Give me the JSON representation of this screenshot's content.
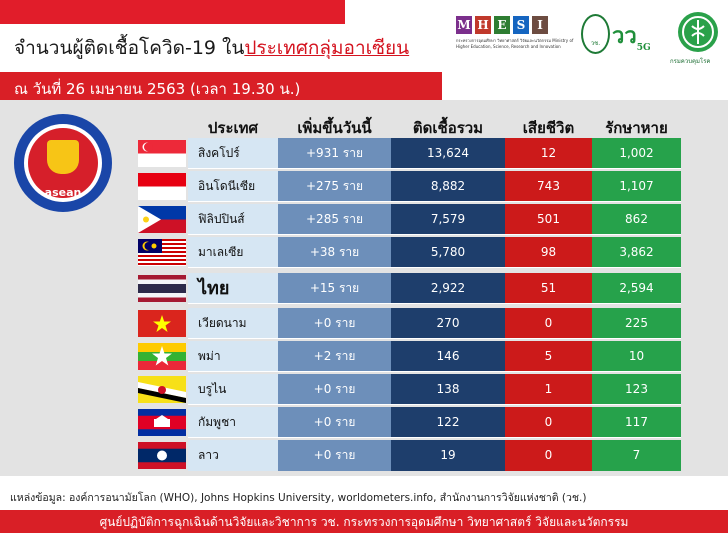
{
  "header": {
    "title_prefix": "จำนวนผู้ติดเชื้อโควิด-19 ใน",
    "title_highlight": "ประเทศกลุ่มอาเซียน",
    "date_line": "ณ วันที่ 26 เมษายน 2563 (เวลา 19.30 น.)"
  },
  "logos": {
    "mhesi_letters": [
      "M",
      "H",
      "E",
      "S",
      "I"
    ],
    "mhesi_colors": [
      "#7b2f8c",
      "#c0392b",
      "#2e7d32",
      "#1565c0",
      "#6d4c41"
    ],
    "mhesi_subtitle": "กระทรวงการอุดมศึกษา วิทยาศาสตร์ วิจัยและนวัตกรรม Ministry of Higher Education, Science, Research and Innovation",
    "nrct_label": "วช.",
    "vc_label": "วว",
    "fiveg_label": "5G",
    "ddc_label": "กรมควบคุมโรค"
  },
  "asean_logo_text": "asean",
  "table": {
    "headers": [
      "ประเทศ",
      "เพิ่มขึ้นวันนี้",
      "ติดเชื้อรวม",
      "เสียชีวิต",
      "รักษาหาย"
    ],
    "rows": [
      {
        "country": "สิงคโปร์",
        "flag": "singapore-flag",
        "new": "+931 ราย",
        "total": "13,624",
        "deaths": "12",
        "recovered": "1,002"
      },
      {
        "country": "อินโดนีเซีย",
        "flag": "indonesia-flag",
        "new": "+275 ราย",
        "total": "8,882",
        "deaths": "743",
        "recovered": "1,107"
      },
      {
        "country": "ฟิลิปปินส์",
        "flag": "philippines-flag",
        "new": "+285 ราย",
        "total": "7,579",
        "deaths": "501",
        "recovered": "862"
      },
      {
        "country": "มาเลเซีย",
        "flag": "malaysia-flag",
        "new": "+38 ราย",
        "total": "5,780",
        "deaths": "98",
        "recovered": "3,862"
      },
      {
        "country": "ไทย",
        "flag": "thailand-flag",
        "new": "+15 ราย",
        "total": "2,922",
        "deaths": "51",
        "recovered": "2,594"
      },
      {
        "country": "เวียดนาม",
        "flag": "vietnam-flag",
        "new": "+0 ราย",
        "total": "270",
        "deaths": "0",
        "recovered": "225"
      },
      {
        "country": "พม่า",
        "flag": "myanmar-flag",
        "new": "+2 ราย",
        "total": "146",
        "deaths": "5",
        "recovered": "10"
      },
      {
        "country": "บรูไน",
        "flag": "brunei-flag",
        "new": "+0 ราย",
        "total": "138",
        "deaths": "1",
        "recovered": "123"
      },
      {
        "country": "กัมพูชา",
        "flag": "cambodia-flag",
        "new": "+0 ราย",
        "total": "122",
        "deaths": "0",
        "recovered": "117"
      },
      {
        "country": "ลาว",
        "flag": "laos-flag",
        "new": "+0 ราย",
        "total": "19",
        "deaths": "0",
        "recovered": "7"
      }
    ]
  },
  "source_text": "แหล่งข้อมูล: องค์การอนามัยโลก (WHO), Johns Hopkins University, worldometers.info, สำนักงานการวิจัยแห่งชาติ (วช.)",
  "footer_text": "ศูนย์ปฏิบัติการฉุกเฉินด้านวิจัยและวิชาการ   วช.   กระทรวงการอุดมศึกษา วิทยาศาสตร์ วิจัยและนวัตกรรม",
  "colors": {
    "red": "#d91f26",
    "new_col": "#6d8fba",
    "total_col": "#1e3e6c",
    "death_col": "#cc1a1a",
    "recover_col": "#26a24b"
  }
}
